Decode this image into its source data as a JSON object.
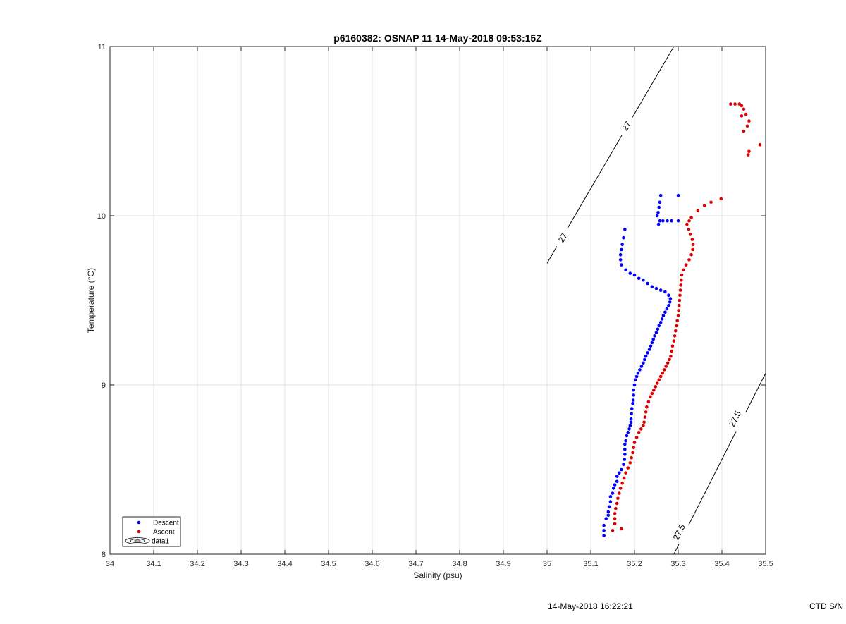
{
  "footer": {
    "timestamp": "14-May-2018 16:22:21",
    "ctd": "CTD S/N"
  },
  "chart_data": {
    "type": "scatter",
    "title": "p6160382: OSNAP 11 14-May-2018 09:53:15Z",
    "xlabel": "Salinity (psu)",
    "ylabel": "Temperature (°C)",
    "xlim": [
      34,
      35.5
    ],
    "ylim": [
      8,
      11
    ],
    "xticks": [
      "34",
      "34.1",
      "34.2",
      "34.3",
      "34.4",
      "34.5",
      "34.6",
      "34.7",
      "34.8",
      "34.9",
      "35",
      "35.1",
      "35.2",
      "35.3",
      "35.4",
      "35.5"
    ],
    "yticks": [
      "8",
      "9",
      "10",
      "11"
    ],
    "grid": true,
    "legend": {
      "position": "bottom-left",
      "entries": [
        "Descent",
        "Ascent",
        "data1"
      ]
    },
    "contours": [
      {
        "level": "27",
        "points": [
          [
            35.0,
            9.72
          ],
          [
            35.29,
            11.0
          ]
        ],
        "labels": [
          [
            35.036,
            9.87
          ],
          [
            35.182,
            10.53
          ]
        ]
      },
      {
        "level": "27.5",
        "points": [
          [
            35.29,
            8.0
          ],
          [
            35.5,
            9.07
          ]
        ],
        "labels": [
          [
            35.302,
            8.13
          ],
          [
            35.43,
            8.8
          ]
        ]
      }
    ],
    "series": [
      {
        "name": "Descent",
        "color": "#0000ff",
        "points": [
          [
            35.13,
            8.11
          ],
          [
            35.13,
            8.14
          ],
          [
            35.13,
            8.17
          ],
          [
            35.135,
            8.21
          ],
          [
            35.14,
            8.23
          ],
          [
            35.14,
            8.25
          ],
          [
            35.142,
            8.28
          ],
          [
            35.145,
            8.31
          ],
          [
            35.145,
            8.34
          ],
          [
            35.15,
            8.36
          ],
          [
            35.152,
            8.39
          ],
          [
            35.155,
            8.41
          ],
          [
            35.16,
            8.43
          ],
          [
            35.16,
            8.46
          ],
          [
            35.165,
            8.48
          ],
          [
            35.17,
            8.5
          ],
          [
            35.175,
            8.53
          ],
          [
            35.177,
            8.56
          ],
          [
            35.178,
            8.59
          ],
          [
            35.178,
            8.62
          ],
          [
            35.178,
            8.65
          ],
          [
            35.18,
            8.67
          ],
          [
            35.182,
            8.7
          ],
          [
            35.185,
            8.72
          ],
          [
            35.188,
            8.74
          ],
          [
            35.19,
            8.76
          ],
          [
            35.192,
            8.78
          ],
          [
            35.192,
            8.8
          ],
          [
            35.193,
            8.83
          ],
          [
            35.194,
            8.86
          ],
          [
            35.196,
            8.89
          ],
          [
            35.197,
            8.91
          ],
          [
            35.198,
            8.94
          ],
          [
            35.198,
            8.97
          ],
          [
            35.2,
            9.0
          ],
          [
            35.202,
            9.03
          ],
          [
            35.205,
            9.05
          ],
          [
            35.208,
            9.07
          ],
          [
            35.212,
            9.09
          ],
          [
            35.216,
            9.11
          ],
          [
            35.22,
            9.13
          ],
          [
            35.223,
            9.15
          ],
          [
            35.226,
            9.17
          ],
          [
            35.23,
            9.19
          ],
          [
            35.234,
            9.21
          ],
          [
            35.237,
            9.23
          ],
          [
            35.24,
            9.25
          ],
          [
            35.243,
            9.27
          ],
          [
            35.246,
            9.29
          ],
          [
            35.25,
            9.31
          ],
          [
            35.253,
            9.33
          ],
          [
            35.256,
            9.35
          ],
          [
            35.26,
            9.37
          ],
          [
            35.263,
            9.39
          ],
          [
            35.266,
            9.41
          ],
          [
            35.27,
            9.43
          ],
          [
            35.274,
            9.45
          ],
          [
            35.278,
            9.47
          ],
          [
            35.281,
            9.49
          ],
          [
            35.282,
            9.51
          ],
          [
            35.278,
            9.53
          ],
          [
            35.27,
            9.55
          ],
          [
            35.26,
            9.56
          ],
          [
            35.25,
            9.57
          ],
          [
            35.24,
            9.58
          ],
          [
            35.23,
            9.6
          ],
          [
            35.22,
            9.62
          ],
          [
            35.21,
            9.63
          ],
          [
            35.2,
            9.65
          ],
          [
            35.19,
            9.66
          ],
          [
            35.18,
            9.68
          ],
          [
            35.17,
            9.71
          ],
          [
            35.168,
            9.74
          ],
          [
            35.168,
            9.77
          ],
          [
            35.17,
            9.8
          ],
          [
            35.172,
            9.83
          ],
          [
            35.175,
            9.87
          ],
          [
            35.178,
            9.92
          ],
          [
            35.255,
            9.95
          ],
          [
            35.258,
            9.97
          ],
          [
            35.265,
            9.97
          ],
          [
            35.275,
            9.97
          ],
          [
            35.285,
            9.97
          ],
          [
            35.3,
            9.97
          ],
          [
            35.252,
            10.0
          ],
          [
            35.254,
            10.02
          ],
          [
            35.256,
            10.05
          ],
          [
            35.258,
            10.08
          ],
          [
            35.26,
            10.12
          ],
          [
            35.3,
            10.12
          ]
        ]
      },
      {
        "name": "Ascent",
        "color": "#dd0000",
        "points": [
          [
            35.15,
            8.14
          ],
          [
            35.17,
            8.15
          ],
          [
            35.155,
            8.18
          ],
          [
            35.155,
            8.21
          ],
          [
            35.155,
            8.24
          ],
          [
            35.157,
            8.27
          ],
          [
            35.16,
            8.3
          ],
          [
            35.162,
            8.33
          ],
          [
            35.165,
            8.36
          ],
          [
            35.168,
            8.39
          ],
          [
            35.172,
            8.42
          ],
          [
            35.176,
            8.45
          ],
          [
            35.18,
            8.48
          ],
          [
            35.185,
            8.51
          ],
          [
            35.19,
            8.54
          ],
          [
            35.193,
            8.57
          ],
          [
            35.196,
            8.6
          ],
          [
            35.198,
            8.63
          ],
          [
            35.2,
            8.66
          ],
          [
            35.205,
            8.69
          ],
          [
            35.21,
            8.72
          ],
          [
            35.215,
            8.74
          ],
          [
            35.22,
            8.76
          ],
          [
            35.222,
            8.78
          ],
          [
            35.224,
            8.81
          ],
          [
            35.226,
            8.84
          ],
          [
            35.228,
            8.87
          ],
          [
            35.232,
            8.9
          ],
          [
            35.236,
            8.93
          ],
          [
            35.24,
            8.95
          ],
          [
            35.244,
            8.97
          ],
          [
            35.248,
            8.99
          ],
          [
            35.252,
            9.01
          ],
          [
            35.256,
            9.03
          ],
          [
            35.26,
            9.05
          ],
          [
            35.264,
            9.07
          ],
          [
            35.268,
            9.09
          ],
          [
            35.272,
            9.11
          ],
          [
            35.276,
            9.13
          ],
          [
            35.28,
            9.15
          ],
          [
            35.283,
            9.17
          ],
          [
            35.285,
            9.2
          ],
          [
            35.287,
            9.23
          ],
          [
            35.29,
            9.26
          ],
          [
            35.292,
            9.29
          ],
          [
            35.294,
            9.32
          ],
          [
            35.296,
            9.35
          ],
          [
            35.298,
            9.38
          ],
          [
            35.3,
            9.41
          ],
          [
            35.301,
            9.44
          ],
          [
            35.302,
            9.47
          ],
          [
            35.303,
            9.5
          ],
          [
            35.304,
            9.53
          ],
          [
            35.305,
            9.56
          ],
          [
            35.306,
            9.59
          ],
          [
            35.307,
            9.62
          ],
          [
            35.308,
            9.65
          ],
          [
            35.312,
            9.68
          ],
          [
            35.318,
            9.71
          ],
          [
            35.325,
            9.74
          ],
          [
            35.33,
            9.77
          ],
          [
            35.333,
            9.8
          ],
          [
            35.334,
            9.83
          ],
          [
            35.332,
            9.86
          ],
          [
            35.328,
            9.89
          ],
          [
            35.324,
            9.92
          ],
          [
            35.32,
            9.95
          ],
          [
            35.325,
            9.97
          ],
          [
            35.33,
            9.99
          ],
          [
            35.345,
            10.03
          ],
          [
            35.36,
            10.06
          ],
          [
            35.375,
            10.08
          ],
          [
            35.398,
            10.1
          ],
          [
            35.46,
            10.36
          ],
          [
            35.462,
            10.38
          ],
          [
            35.487,
            10.42
          ],
          [
            35.45,
            10.5
          ],
          [
            35.458,
            10.53
          ],
          [
            35.462,
            10.56
          ],
          [
            35.445,
            10.59
          ],
          [
            35.455,
            10.6
          ],
          [
            35.45,
            10.63
          ],
          [
            35.445,
            10.65
          ],
          [
            35.42,
            10.66
          ],
          [
            35.43,
            10.66
          ],
          [
            35.44,
            10.66
          ]
        ]
      }
    ]
  }
}
